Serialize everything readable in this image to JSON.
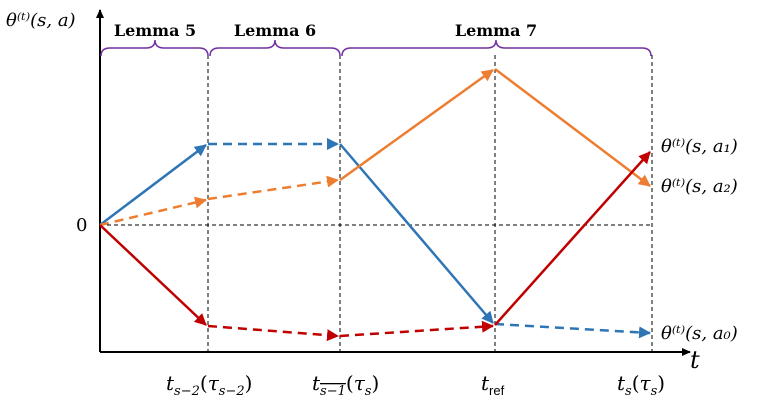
{
  "y_axis_label": "θ⁽ᵗ⁾(s, a)",
  "x_axis_label": "t",
  "zero_label": "0",
  "lemmas": [
    "Lemma 5",
    "Lemma 6",
    "Lemma 7"
  ],
  "time_ticks": [
    "t_{s−2}(τ_{s−2})",
    "t_{\\overline{s−1}}(τ_s)",
    "t_ref",
    "t_s(τ_s)"
  ],
  "series": [
    {
      "name": "θ⁽ᵗ⁾(s, a₁)",
      "color": "#c00000"
    },
    {
      "name": "θ⁽ᵗ⁾(s, a₂)",
      "color": "#ed7d31"
    },
    {
      "name": "θ⁽ᵗ⁾(s, a₀)",
      "color": "#2e75b6"
    }
  ],
  "colors": {
    "brace": "#7030a0",
    "axis": "#000000",
    "guide": "#000000"
  }
}
